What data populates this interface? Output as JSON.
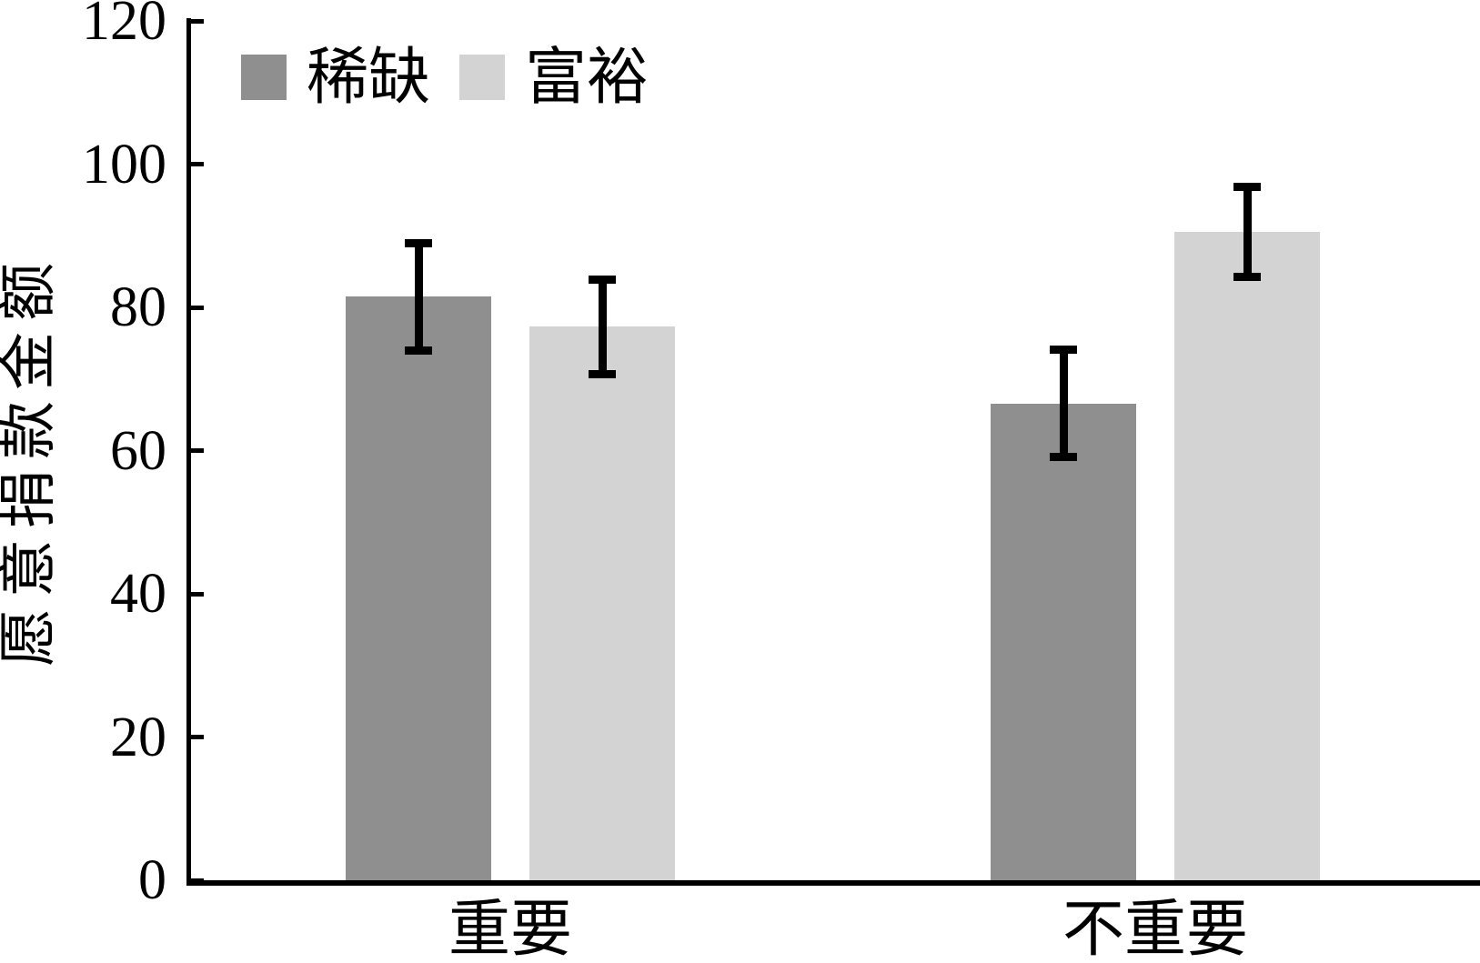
{
  "chart_data": {
    "type": "bar",
    "title": "",
    "categories": [
      "重要",
      "不重要"
    ],
    "series": [
      {
        "name": "稀缺",
        "color": "#8f8f8f",
        "values": [
          81.5,
          66.6
        ],
        "errors": [
          7.5,
          7.5
        ]
      },
      {
        "name": "富裕",
        "color": "#d3d3d3",
        "values": [
          77.3,
          90.5
        ],
        "errors": [
          6.6,
          6.3
        ]
      }
    ],
    "xlabel": "",
    "ylabel": "愿意捐款金额",
    "ylim": [
      0,
      120
    ],
    "yticks": [
      0,
      20,
      40,
      60,
      80,
      100,
      120
    ],
    "grid": false,
    "error_bars": true,
    "legend_position": "top-left",
    "axis_color": "#000000",
    "background_color": "#ffffff"
  }
}
